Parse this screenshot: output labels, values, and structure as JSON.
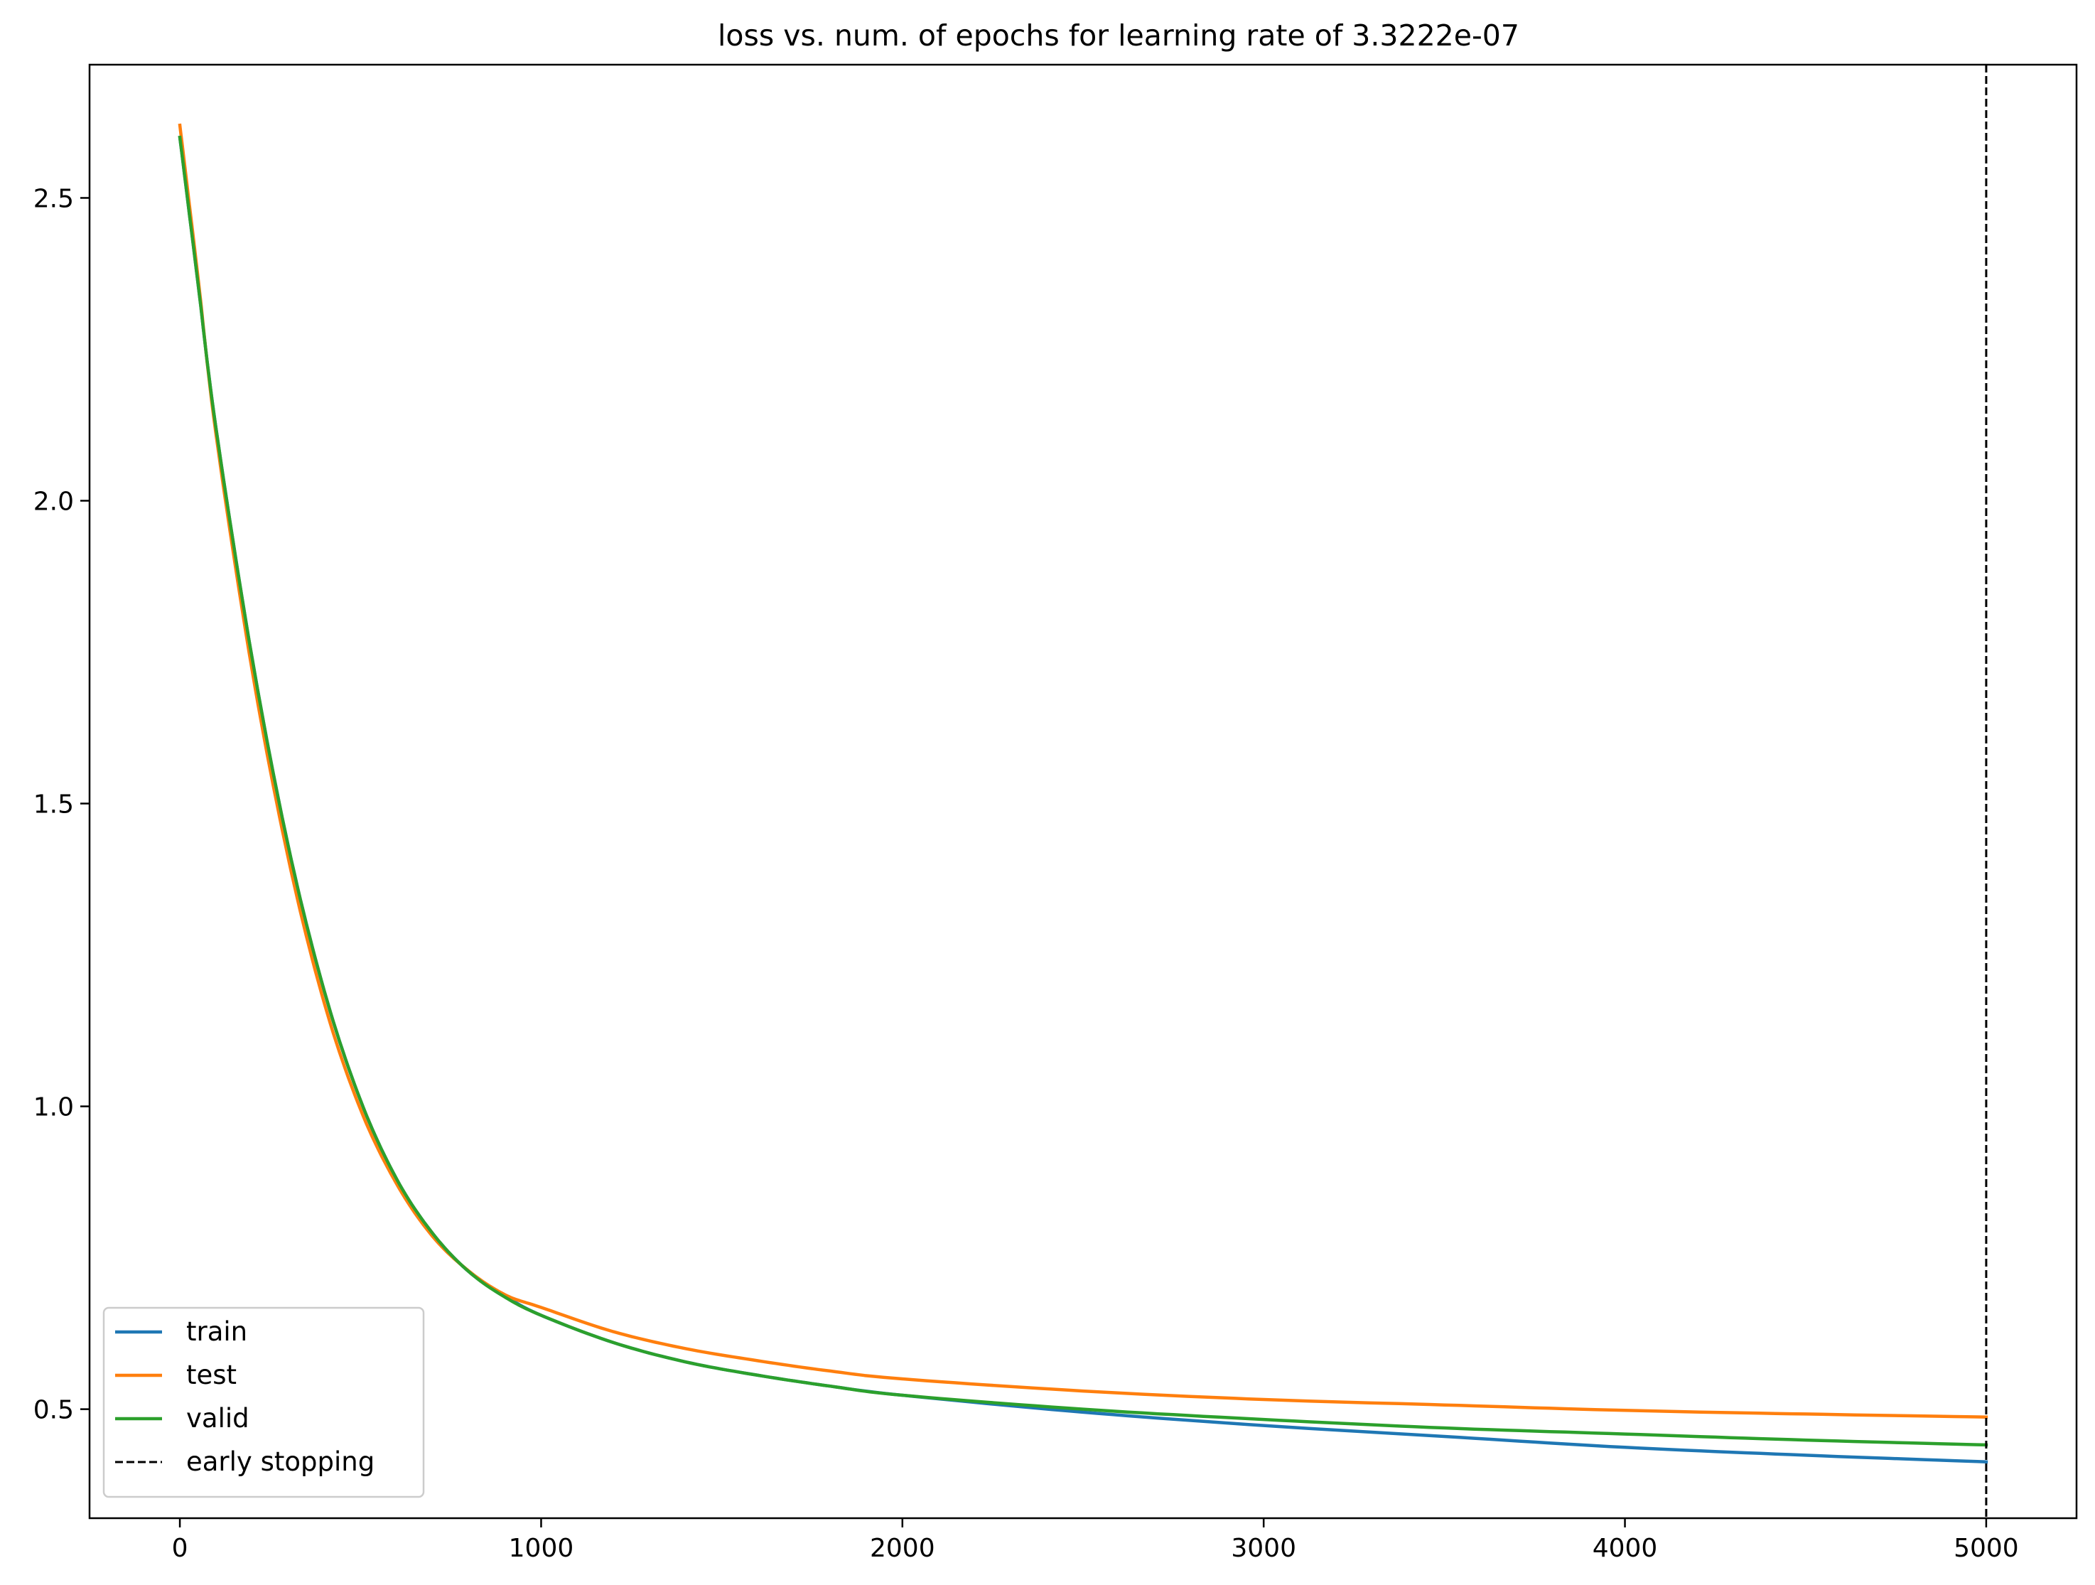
{
  "chart_data": {
    "type": "line",
    "title": "loss vs. num. of epochs for learning rate of 3.3222e-07",
    "xlabel": "",
    "ylabel": "",
    "xlim": [
      -250,
      5250
    ],
    "ylim": [
      0.32,
      2.72
    ],
    "xticks": [
      0,
      1000,
      2000,
      3000,
      4000,
      5000
    ],
    "xtick_labels": [
      "0",
      "1000",
      "2000",
      "3000",
      "4000",
      "5000"
    ],
    "yticks": [
      0.5,
      1.0,
      1.5,
      2.0,
      2.5
    ],
    "ytick_labels": [
      "0.5",
      "1.0",
      "1.5",
      "2.0",
      "2.5"
    ],
    "grid": false,
    "legend_position": "lower-left",
    "x": [
      0,
      50,
      100,
      200,
      300,
      400,
      500,
      600,
      700,
      800,
      900,
      1000,
      1200,
      1400,
      1600,
      1800,
      2000,
      2500,
      3000,
      3500,
      4000,
      4500,
      5000
    ],
    "series": [
      {
        "name": "train",
        "color": "#1f77b4",
        "style": "solid",
        "values": [
          2.6,
          2.36,
          2.12,
          1.74,
          1.43,
          1.19,
          1.01,
          0.88,
          0.79,
          0.727,
          0.687,
          0.655,
          0.61,
          0.578,
          0.556,
          0.538,
          0.523,
          0.495,
          0.473,
          0.455,
          0.437,
          0.424,
          0.413
        ]
      },
      {
        "name": "test",
        "color": "#ff7f0e",
        "style": "solid",
        "values": [
          2.62,
          2.37,
          2.11,
          1.72,
          1.41,
          1.17,
          0.995,
          0.872,
          0.785,
          0.728,
          0.689,
          0.668,
          0.628,
          0.6,
          0.58,
          0.563,
          0.55,
          0.53,
          0.516,
          0.507,
          0.498,
          0.492,
          0.487
        ]
      },
      {
        "name": "valid",
        "color": "#2ca02c",
        "style": "solid",
        "values": [
          2.6,
          2.36,
          2.12,
          1.74,
          1.43,
          1.19,
          1.01,
          0.88,
          0.79,
          0.727,
          0.685,
          0.655,
          0.61,
          0.578,
          0.556,
          0.538,
          0.523,
          0.5,
          0.483,
          0.469,
          0.459,
          0.449,
          0.441
        ]
      }
    ],
    "vlines": [
      {
        "name": "early stopping",
        "x": 5000,
        "color": "#000000",
        "style": "dashed"
      }
    ]
  }
}
